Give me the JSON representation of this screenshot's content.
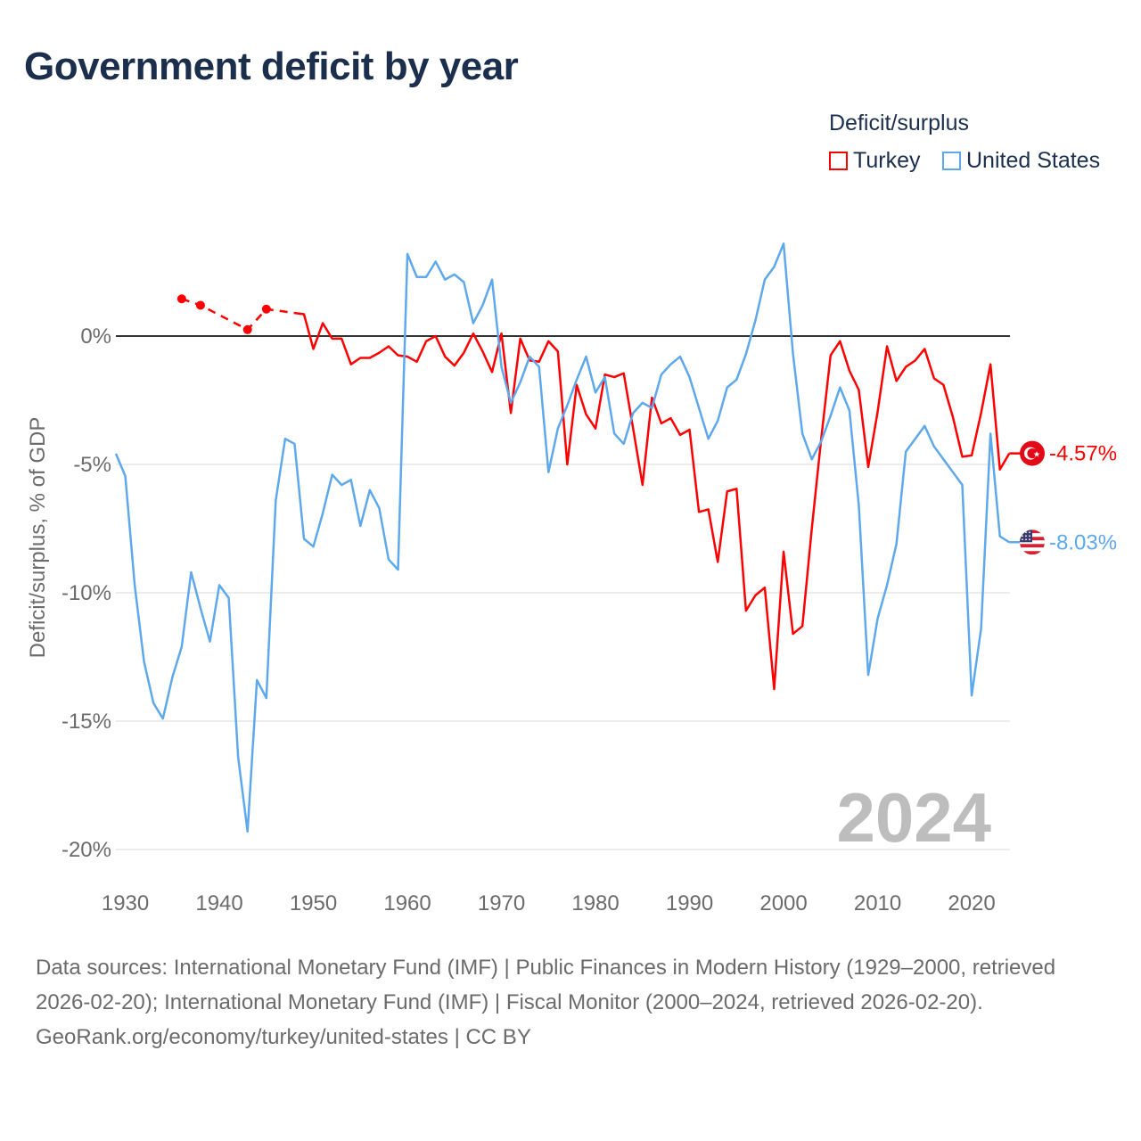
{
  "title": "Government deficit by year",
  "legend": {
    "title": "Deficit/surplus",
    "items": [
      {
        "name": "Turkey",
        "color": "#ff0000"
      },
      {
        "name": "United States",
        "color": "#5ea8ec"
      }
    ]
  },
  "footer": {
    "sources": "Data sources: International Monetary Fund (IMF) | Public Finances in Modern History (1929–2000, retrieved 2026-02-20); International Monetary Fund (IMF) | Fiscal Monitor (2000–2024, retrieved 2026-02-20).",
    "credit": "GeoRank.org/economy/turkey/united-states | CC BY"
  },
  "chart_data": {
    "type": "line",
    "title": "Government deficit by year",
    "xlabel": "",
    "ylabel": "Deficit/surplus, % of GDP",
    "xlim": [
      1929,
      2024
    ],
    "ylim": [
      -21,
      4
    ],
    "x_ticks": [
      1930,
      1940,
      1950,
      1960,
      1970,
      1980,
      1990,
      2000,
      2010,
      2020
    ],
    "y_ticks": [
      {
        "v": 0,
        "label": "0%"
      },
      {
        "v": -5,
        "label": "-5%"
      },
      {
        "v": -10,
        "label": "-10%"
      },
      {
        "v": -15,
        "label": "-15%"
      },
      {
        "v": -20,
        "label": "-20%"
      }
    ],
    "current_year": "2024",
    "legend_position": "top-right",
    "series": [
      {
        "name": "Turkey",
        "color": "#ff0000",
        "end_label": "-4.57%",
        "dashed_until": 1948,
        "x": [
          1936,
          1938,
          1943,
          1945,
          1948,
          1949,
          1950,
          1951,
          1952,
          1953,
          1954,
          1955,
          1956,
          1957,
          1958,
          1959,
          1960,
          1961,
          1962,
          1963,
          1964,
          1965,
          1966,
          1967,
          1968,
          1969,
          1970,
          1971,
          1972,
          1973,
          1974,
          1975,
          1976,
          1977,
          1978,
          1979,
          1980,
          1981,
          1982,
          1983,
          1984,
          1985,
          1986,
          1987,
          1988,
          1989,
          1990,
          1991,
          1992,
          1993,
          1994,
          1995,
          1996,
          1997,
          1998,
          1999,
          2000,
          2001,
          2002,
          2003,
          2004,
          2005,
          2006,
          2007,
          2008,
          2009,
          2010,
          2011,
          2012,
          2013,
          2014,
          2015,
          2016,
          2017,
          2018,
          2019,
          2020,
          2021,
          2022,
          2023,
          2024
        ],
        "values": [
          1.45,
          1.2,
          0.25,
          1.05,
          0.9,
          0.85,
          -0.5,
          0.5,
          -0.1,
          -0.1,
          -1.1,
          -0.85,
          -0.85,
          -0.65,
          -0.4,
          -0.75,
          -0.8,
          -1.0,
          -0.2,
          0.0,
          -0.8,
          -1.15,
          -0.65,
          0.1,
          -0.6,
          -1.4,
          0.1,
          -3.0,
          -0.1,
          -0.95,
          -1.0,
          -0.2,
          -0.6,
          -5.0,
          -1.9,
          -3.05,
          -3.6,
          -1.5,
          -1.6,
          -1.45,
          -3.6,
          -5.8,
          -2.4,
          -3.4,
          -3.2,
          -3.85,
          -3.65,
          -6.85,
          -6.75,
          -8.8,
          -6.05,
          -5.95,
          -10.7,
          -10.1,
          -9.8,
          -13.75,
          -8.4,
          -11.6,
          -11.3,
          -7.5,
          -4.0,
          -0.75,
          -0.2,
          -1.35,
          -2.1,
          -5.1,
          -2.95,
          -0.4,
          -1.75,
          -1.2,
          -0.95,
          -0.5,
          -1.65,
          -1.9,
          -3.15,
          -4.7,
          -4.65,
          -3.0,
          -1.1,
          -5.2,
          -4.57
        ]
      },
      {
        "name": "United States",
        "color": "#5ea8ec",
        "end_label": "-8.03%",
        "x": [
          1929,
          1930,
          1931,
          1932,
          1933,
          1934,
          1935,
          1936,
          1937,
          1938,
          1939,
          1940,
          1941,
          1942,
          1943,
          1944,
          1945,
          1946,
          1947,
          1948,
          1949,
          1950,
          1951,
          1952,
          1953,
          1954,
          1955,
          1956,
          1957,
          1958,
          1959,
          1960,
          1961,
          1962,
          1963,
          1964,
          1965,
          1966,
          1967,
          1968,
          1969,
          1970,
          1971,
          1972,
          1973,
          1974,
          1975,
          1976,
          1977,
          1978,
          1979,
          1980,
          1981,
          1982,
          1983,
          1984,
          1985,
          1986,
          1987,
          1988,
          1989,
          1990,
          1991,
          1992,
          1993,
          1994,
          1995,
          1996,
          1997,
          1998,
          1999,
          2000,
          2001,
          2002,
          2003,
          2004,
          2005,
          2006,
          2007,
          2008,
          2009,
          2010,
          2011,
          2012,
          2013,
          2014,
          2015,
          2016,
          2017,
          2018,
          2019,
          2020,
          2021,
          2022,
          2023,
          2024
        ],
        "values": [
          -4.58,
          -5.45,
          -9.7,
          -12.7,
          -14.3,
          -14.9,
          -13.3,
          -12.1,
          -9.2,
          -10.6,
          -11.9,
          -9.7,
          -10.2,
          -16.4,
          -19.3,
          -13.4,
          -14.1,
          -6.4,
          -4.0,
          -4.2,
          -7.9,
          -8.2,
          -6.9,
          -5.4,
          -5.8,
          -5.6,
          -7.4,
          -6.0,
          -6.7,
          -8.7,
          -9.1,
          3.2,
          2.3,
          2.3,
          2.9,
          2.2,
          2.4,
          2.1,
          0.5,
          1.2,
          2.2,
          -1.2,
          -2.6,
          -1.8,
          -0.8,
          -1.2,
          -5.3,
          -3.6,
          -2.7,
          -1.7,
          -0.8,
          -2.2,
          -1.6,
          -3.8,
          -4.2,
          -3.0,
          -2.6,
          -2.8,
          -1.5,
          -1.1,
          -0.8,
          -1.6,
          -2.8,
          -4.0,
          -3.3,
          -2.0,
          -1.7,
          -0.7,
          0.6,
          2.2,
          2.7,
          3.6,
          -0.7,
          -3.8,
          -4.8,
          -4.1,
          -3.1,
          -2.0,
          -2.9,
          -6.6,
          -13.2,
          -11.0,
          -9.7,
          -8.1,
          -4.5,
          -4.0,
          -3.5,
          -4.3,
          -4.8,
          -5.3,
          -5.8,
          -14.0,
          -11.4,
          -3.8,
          -7.8,
          -8.03
        ]
      }
    ]
  }
}
